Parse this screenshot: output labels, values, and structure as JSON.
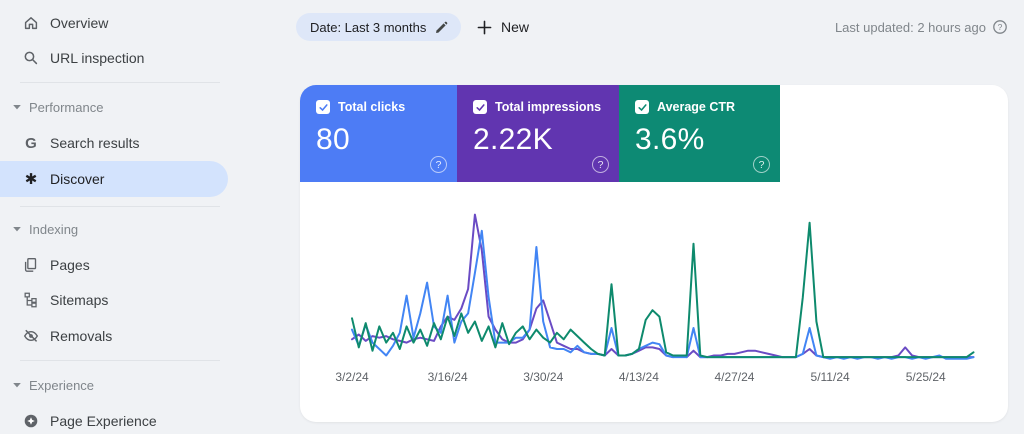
{
  "app": "Google Search Console",
  "sidebar": {
    "top_items": [
      {
        "label": "Overview",
        "icon": "home-icon"
      },
      {
        "label": "URL inspection",
        "icon": "search-icon"
      }
    ],
    "sections": [
      {
        "label": "Performance",
        "items": [
          {
            "label": "Search results",
            "icon": "google-g-icon",
            "selected": false
          },
          {
            "label": "Discover",
            "icon": "discover-asterisk-icon",
            "selected": true
          }
        ]
      },
      {
        "label": "Indexing",
        "items": [
          {
            "label": "Pages",
            "icon": "pages-icon",
            "selected": false
          },
          {
            "label": "Sitemaps",
            "icon": "sitemaps-icon",
            "selected": false
          },
          {
            "label": "Removals",
            "icon": "eye-off-icon",
            "selected": false
          }
        ]
      },
      {
        "label": "Experience",
        "items": [
          {
            "label": "Page Experience",
            "icon": "page-experience-icon",
            "selected": false
          }
        ]
      }
    ],
    "selected_item": "Discover"
  },
  "toolbar": {
    "date_filter_label": "Date: Last 3 months",
    "new_button_label": "New",
    "last_updated": "Last updated: 2 hours ago"
  },
  "metric_cards": [
    {
      "label": "Total clicks",
      "value": "80",
      "checked": true,
      "color": "#4d7cf5"
    },
    {
      "label": "Total impressions",
      "value": "2.22K",
      "checked": true,
      "color": "#6135b0"
    },
    {
      "label": "Average CTR",
      "value": "3.6%",
      "checked": true,
      "color": "#0d8a74"
    }
  ],
  "chart_data": {
    "type": "line",
    "title": "",
    "xlabel": "",
    "ylabel": "",
    "x_axis": {
      "frequency": "daily",
      "start_date": "3/2/24",
      "end_date": "6/1/24",
      "tick_labels": [
        "3/2/24",
        "3/16/24",
        "3/30/24",
        "4/13/24",
        "4/27/24",
        "5/11/24",
        "5/25/24"
      ],
      "tick_interval_days": 14
    },
    "y_axis": {
      "visible": false,
      "note": "No y-axis shown; each series is independently normalized. Values below are estimated % of plot height (0-100)."
    },
    "legend_position": "none (metric cards above act as legend)",
    "grid": false,
    "series": [
      {
        "name": "Total impressions",
        "key": "impressions",
        "color": "#6a4bc4",
        "summary_total": "2.22K",
        "values": [
          14,
          17,
          13,
          16,
          15,
          16,
          14,
          13,
          12,
          14,
          15,
          14,
          13,
          22,
          28,
          26,
          33,
          45,
          91,
          69,
          28,
          20,
          14,
          12,
          12,
          14,
          20,
          33,
          38,
          25,
          12,
          10,
          8,
          8,
          6,
          5,
          5,
          4,
          8,
          4,
          4,
          5,
          7,
          9,
          9,
          8,
          4,
          3,
          4,
          3,
          7,
          3,
          3,
          4,
          4,
          5,
          5,
          6,
          7,
          7,
          6,
          5,
          4,
          3,
          3,
          3,
          5,
          8,
          4,
          3,
          3,
          3,
          3,
          3,
          3,
          3,
          3,
          3,
          3,
          3,
          4,
          9,
          4,
          3,
          3,
          3,
          3,
          3,
          3,
          3,
          3,
          3
        ]
      },
      {
        "name": "Total clicks",
        "key": "clicks",
        "color": "#4285f4",
        "summary_total": "80",
        "values": [
          20,
          10,
          23,
          12,
          8,
          4,
          10,
          18,
          41,
          15,
          30,
          49,
          22,
          18,
          41,
          12,
          25,
          30,
          55,
          81,
          40,
          12,
          12,
          12,
          15,
          15,
          20,
          71,
          25,
          9,
          8,
          8,
          6,
          10,
          6,
          5,
          5,
          4,
          21,
          4,
          4,
          5,
          8,
          10,
          12,
          11,
          4,
          3,
          3,
          3,
          21,
          3,
          3,
          3,
          3,
          3,
          3,
          3,
          3,
          3,
          3,
          3,
          3,
          3,
          3,
          3,
          5,
          21,
          4,
          3,
          2,
          3,
          2,
          3,
          2,
          3,
          3,
          2,
          3,
          2,
          3,
          3,
          2,
          3,
          2,
          3,
          4,
          2,
          2,
          2,
          2,
          3
        ]
      },
      {
        "name": "Average CTR",
        "key": "ctr",
        "color": "#0e8a6d",
        "summary_average": "3.6%",
        "values": [
          27,
          9,
          24,
          7,
          22,
          12,
          18,
          8,
          22,
          12,
          20,
          10,
          24,
          14,
          28,
          16,
          30,
          18,
          25,
          13,
          22,
          9,
          24,
          11,
          18,
          22,
          14,
          20,
          15,
          12,
          18,
          14,
          20,
          16,
          12,
          8,
          5,
          4,
          48,
          4,
          4,
          5,
          8,
          26,
          32,
          28,
          6,
          4,
          4,
          4,
          73,
          4,
          3,
          3,
          3,
          3,
          3,
          3,
          3,
          3,
          3,
          3,
          3,
          3,
          3,
          3,
          40,
          86,
          25,
          3,
          3,
          3,
          3,
          3,
          3,
          3,
          3,
          3,
          3,
          3,
          3,
          3,
          3,
          3,
          3,
          3,
          3,
          3,
          3,
          3,
          3,
          6
        ]
      }
    ]
  }
}
